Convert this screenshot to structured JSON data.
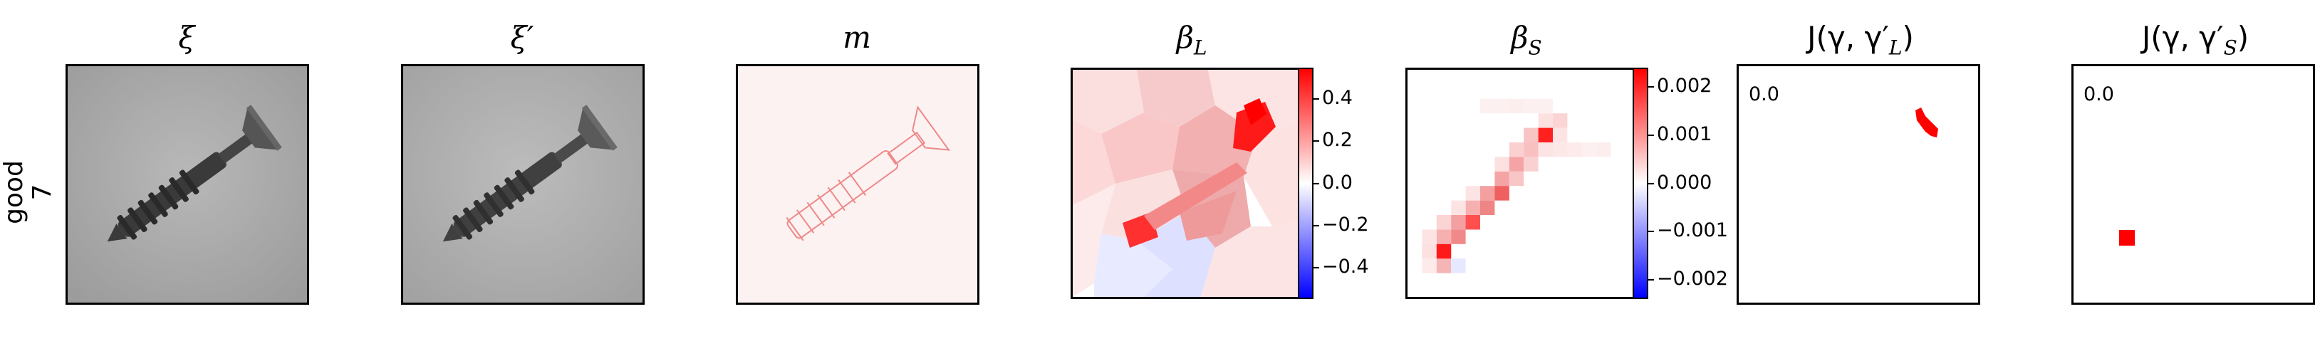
{
  "row_label_top": "good",
  "row_label_bottom": "7",
  "panels": [
    {
      "title": "ξ"
    },
    {
      "title": "ξ′"
    },
    {
      "title": "m"
    },
    {
      "title": "β",
      "sub": "L"
    },
    {
      "title": "β",
      "sub": "S"
    },
    {
      "title": "J(γ, γ′",
      "sub": "L",
      "suffix": ")"
    },
    {
      "title": "J(γ, γ′",
      "sub": "S",
      "suffix": ")"
    }
  ],
  "colorbar_L_ticks": [
    "0.4",
    "0.2",
    "0.0",
    "−0.2",
    "−0.4"
  ],
  "colorbar_L_values": [
    0.4,
    0.2,
    0.0,
    -0.2,
    -0.4
  ],
  "colorbar_L_range": [
    -0.55,
    0.55
  ],
  "colorbar_S_ticks": [
    "0.002",
    "0.001",
    "0.000",
    "−0.001",
    "−0.002"
  ],
  "colorbar_S_values": [
    0.002,
    0.001,
    0.0,
    -0.001,
    -0.002
  ],
  "colorbar_S_range": [
    -0.0024,
    0.0024
  ],
  "jaccard_L_value": "0.0",
  "jaccard_S_value": "0.0",
  "colors": {
    "positive": "#ff0000",
    "negative": "#0000ff",
    "neutral": "#ffffff"
  }
}
